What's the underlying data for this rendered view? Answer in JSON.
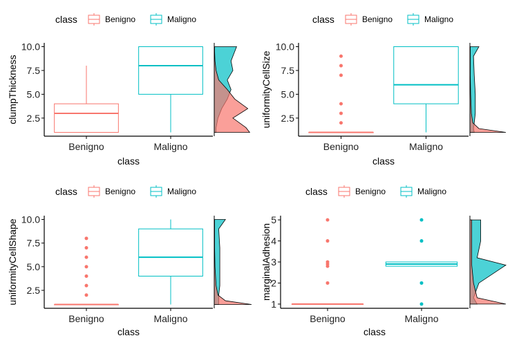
{
  "colors": {
    "benigno": "#F8766D",
    "maligno": "#00BFC4",
    "axis": "#000000",
    "tick_text": "#222222"
  },
  "chart_data": [
    {
      "type": "boxplot",
      "panel": "top-left",
      "legend": {
        "title": "class",
        "position": "top",
        "entries": [
          "Benigno",
          "Maligno"
        ]
      },
      "xlabel": "class",
      "ylabel": "clumpThickness",
      "categories": [
        "Benigno",
        "Maligno"
      ],
      "yticks": [
        "2.5",
        "5.0",
        "7.5",
        "10.0"
      ],
      "ylim": [
        0.6,
        10.4
      ],
      "boxes": [
        {
          "name": "Benigno",
          "min": 1,
          "q1": 1,
          "median": 3,
          "q3": 4,
          "max": 8,
          "outliers": []
        },
        {
          "name": "Maligno",
          "min": 1,
          "q1": 5,
          "median": 8,
          "q3": 10,
          "max": 10,
          "outliers": []
        }
      ],
      "marginal_density": "right"
    },
    {
      "type": "boxplot",
      "panel": "top-right",
      "legend": {
        "title": "class",
        "position": "top",
        "entries": [
          "Benigno",
          "Maligno"
        ]
      },
      "xlabel": "class",
      "ylabel": "uniformityCellSize",
      "categories": [
        "Benigno",
        "Maligno"
      ],
      "yticks": [
        "2.5",
        "5.0",
        "7.5",
        "10.0"
      ],
      "ylim": [
        0.6,
        10.4
      ],
      "boxes": [
        {
          "name": "Benigno",
          "min": 1,
          "q1": 1,
          "median": 1,
          "q3": 1,
          "max": 1,
          "outliers": [
            2,
            3,
            4,
            7,
            8,
            9
          ]
        },
        {
          "name": "Maligno",
          "min": 1,
          "q1": 4,
          "median": 6,
          "q3": 10,
          "max": 10,
          "outliers": []
        }
      ],
      "marginal_density": "right"
    },
    {
      "type": "boxplot",
      "panel": "bottom-left",
      "legend": {
        "title": "class",
        "position": "top",
        "entries": [
          "Benigno",
          "Maligno"
        ]
      },
      "xlabel": "class",
      "ylabel": "uniformityCellShape",
      "categories": [
        "Benigno",
        "Maligno"
      ],
      "yticks": [
        "2.5",
        "5.0",
        "7.5",
        "10.0"
      ],
      "ylim": [
        0.6,
        10.4
      ],
      "boxes": [
        {
          "name": "Benigno",
          "min": 1,
          "q1": 1,
          "median": 1,
          "q3": 1,
          "max": 1,
          "outliers": [
            2,
            3,
            4,
            5,
            6,
            7,
            8
          ]
        },
        {
          "name": "Maligno",
          "min": 1,
          "q1": 4,
          "median": 6,
          "q3": 9,
          "max": 10,
          "outliers": []
        }
      ],
      "marginal_density": "right"
    },
    {
      "type": "boxplot",
      "panel": "bottom-right",
      "legend": {
        "title": "class",
        "position": "top",
        "entries": [
          "Benigno",
          "Maligno"
        ]
      },
      "xlabel": "class",
      "ylabel": "marginalAdhesion",
      "categories": [
        "Benigno",
        "Maligno"
      ],
      "yticks": [
        "1",
        "2",
        "3",
        "4",
        "5"
      ],
      "ylim": [
        0.8,
        5.2
      ],
      "boxes": [
        {
          "name": "Benigno",
          "min": 1,
          "q1": 1,
          "median": 1,
          "q3": 1,
          "max": 1,
          "outliers": [
            2,
            2.8,
            2.9,
            3,
            4,
            5
          ]
        },
        {
          "name": "Maligno",
          "min": 2.8,
          "q1": 2.8,
          "median": 2.9,
          "q3": 3,
          "max": 3,
          "outliers": [
            1,
            2,
            4,
            5
          ]
        }
      ],
      "marginal_density": "right"
    }
  ]
}
